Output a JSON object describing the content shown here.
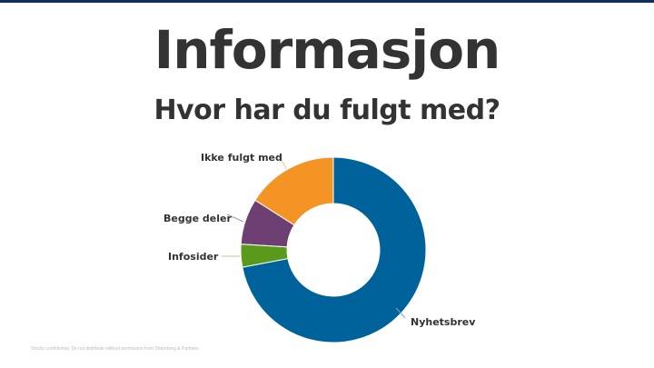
{
  "slide": {
    "title": "Informasjon",
    "subtitle": "Hvor har du fulgt med?",
    "footer": "Strictly confidential. Do not distribute without permission from Söderberg & Partners",
    "topbar_color": "#0d2f66"
  },
  "chart_data": {
    "type": "pie",
    "subtype": "donut",
    "title": "Hvor har du fulgt med?",
    "categories": [
      "Nyhetsbrev",
      "Infosider",
      "Begge deler",
      "Ikke fulgt med"
    ],
    "values": [
      72,
      4,
      8,
      16
    ],
    "unit": "% (estimated)",
    "colors": [
      "#00629b",
      "#5a9a1a",
      "#6e3f72",
      "#f39425"
    ],
    "start_angle": "12 o'clock, clockwise",
    "legend": "none (leader-line labels)"
  },
  "labels": {
    "nyhetsbrev": "Nyhetsbrev",
    "infosider": "Infosider",
    "begge": "Begge deler",
    "ikke": "Ikke fulgt med"
  }
}
